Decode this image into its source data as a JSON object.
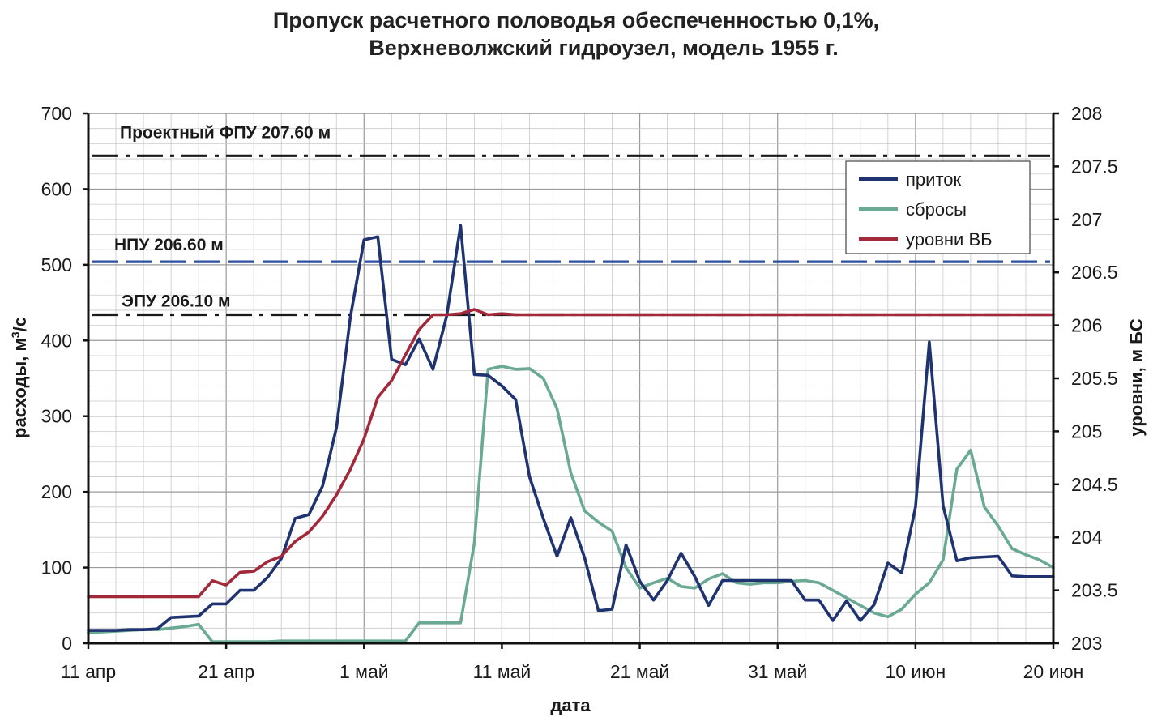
{
  "chart_data": {
    "type": "line",
    "title_line1": "Пропуск расчетного половодья обеспеченностью 0,1%,",
    "title_line2": "Верхневолжский гидроузел, модель 1955 г.",
    "xlabel": "дата",
    "ylabel_left": "расходы, м",
    "ylabel_left_sup": "3",
    "ylabel_left_tail": "/с",
    "ylabel_right": "уровни, м БС",
    "xlim": [
      0,
      70
    ],
    "ylim_left": [
      0,
      700
    ],
    "ylim_right": [
      203,
      208
    ],
    "x_ticks": [
      {
        "day": 0,
        "label": "11 апр"
      },
      {
        "day": 10,
        "label": "21 апр"
      },
      {
        "day": 20,
        "label": "1 май"
      },
      {
        "day": 30,
        "label": "11 май"
      },
      {
        "day": 40,
        "label": "21 май"
      },
      {
        "day": 50,
        "label": "31 май"
      },
      {
        "day": 60,
        "label": "10 июн"
      },
      {
        "day": 70,
        "label": "20 июн"
      }
    ],
    "y_left_ticks": [
      0,
      100,
      200,
      300,
      400,
      500,
      600,
      700
    ],
    "y_right_ticks": [
      "203",
      "203.5",
      "204",
      "204.5",
      "205",
      "205.5",
      "206",
      "206.5",
      "207",
      "207.5",
      "208"
    ],
    "reference_lines": [
      {
        "label": "Проектный ФПУ 207.60 м",
        "value": 207.6,
        "axis": "right",
        "style": "dashdot",
        "color": "#1a1a1a"
      },
      {
        "label": "НПУ 206.60 м",
        "value": 206.6,
        "axis": "right",
        "style": "dash",
        "color": "#2b50a0"
      },
      {
        "label": "ЭПУ 206.10 м",
        "value": 206.1,
        "axis": "right",
        "style": "dashdot",
        "color": "#1a1a1a"
      }
    ],
    "series": [
      {
        "name": "приток",
        "axis": "left",
        "color": "#1f3370",
        "x": [
          0,
          1,
          2,
          3,
          4,
          5,
          6,
          7,
          8,
          9,
          10,
          11,
          12,
          13,
          14,
          15,
          16,
          17,
          18,
          19,
          20,
          21,
          22,
          23,
          24,
          25,
          26,
          27,
          28,
          29,
          30,
          31,
          32,
          33,
          34,
          35,
          36,
          37,
          38,
          39,
          40,
          41,
          42,
          43,
          44,
          45,
          46,
          47,
          48,
          49,
          50,
          51,
          52,
          53,
          54,
          55,
          56,
          57,
          58,
          59,
          60,
          61,
          62,
          63,
          64,
          65,
          66,
          67,
          68,
          69,
          70
        ],
        "values": [
          17,
          17,
          17,
          18,
          18,
          19,
          34,
          35,
          36,
          52,
          52,
          70,
          70,
          87,
          112,
          165,
          170,
          208,
          285,
          430,
          533,
          537,
          375,
          368,
          402,
          362,
          433,
          552,
          355,
          354,
          340,
          322,
          220,
          165,
          115,
          166,
          113,
          43,
          45,
          130,
          82,
          57,
          83,
          119,
          88,
          50,
          83,
          83,
          83,
          83,
          83,
          83,
          57,
          57,
          30,
          56,
          30,
          51,
          106,
          93,
          180,
          398,
          182,
          109,
          113,
          114,
          115,
          89,
          88,
          88,
          88
        ]
      },
      {
        "name": "сбросы",
        "axis": "left",
        "color": "#6aaa94",
        "x": [
          0,
          1,
          2,
          3,
          4,
          5,
          6,
          7,
          8,
          9,
          10,
          11,
          12,
          13,
          14,
          15,
          16,
          17,
          18,
          19,
          20,
          21,
          22,
          23,
          24,
          25,
          26,
          27,
          28,
          29,
          30,
          31,
          32,
          33,
          34,
          35,
          36,
          37,
          38,
          39,
          40,
          41,
          42,
          43,
          44,
          45,
          46,
          47,
          48,
          49,
          50,
          51,
          52,
          53,
          54,
          55,
          56,
          57,
          58,
          59,
          60,
          61,
          62,
          63,
          64,
          65,
          66,
          67,
          68,
          69,
          70
        ],
        "values": [
          14,
          15,
          16,
          17,
          18,
          18,
          20,
          22,
          25,
          2,
          2,
          2,
          2,
          2,
          3,
          3,
          3,
          3,
          3,
          3,
          3,
          3,
          3,
          3,
          27,
          27,
          27,
          27,
          132,
          362,
          366,
          362,
          363,
          350,
          310,
          225,
          175,
          160,
          148,
          100,
          73,
          80,
          86,
          75,
          73,
          85,
          92,
          80,
          78,
          80,
          80,
          82,
          83,
          80,
          70,
          60,
          50,
          40,
          35,
          45,
          65,
          80,
          110,
          230,
          255,
          180,
          155,
          125,
          117,
          110,
          100
        ]
      },
      {
        "name": "уровни ВБ",
        "axis": "right",
        "color": "#a3283a",
        "x": [
          0,
          1,
          2,
          3,
          4,
          5,
          6,
          7,
          8,
          9,
          10,
          11,
          12,
          13,
          14,
          15,
          16,
          17,
          18,
          19,
          20,
          21,
          22,
          23,
          24,
          25,
          26,
          27,
          28,
          29,
          30,
          31,
          32,
          33,
          34,
          35,
          36,
          37,
          38,
          39,
          40,
          41,
          42,
          43,
          44,
          45,
          46,
          47,
          48,
          49,
          50,
          51,
          52,
          53,
          54,
          55,
          56,
          57,
          58,
          59,
          60,
          61,
          62,
          63,
          64,
          65,
          66,
          67,
          68,
          69,
          70
        ],
        "values": [
          203.44,
          203.44,
          203.44,
          203.44,
          203.44,
          203.44,
          203.44,
          203.44,
          203.44,
          203.59,
          203.55,
          203.67,
          203.68,
          203.77,
          203.82,
          203.96,
          204.05,
          204.2,
          204.4,
          204.64,
          204.93,
          205.32,
          205.48,
          205.72,
          205.96,
          206.1,
          206.1,
          206.11,
          206.15,
          206.1,
          206.11,
          206.1,
          206.1,
          206.1,
          206.1,
          206.1,
          206.1,
          206.1,
          206.1,
          206.1,
          206.1,
          206.1,
          206.1,
          206.1,
          206.1,
          206.1,
          206.1,
          206.1,
          206.1,
          206.1,
          206.1,
          206.1,
          206.1,
          206.1,
          206.1,
          206.1,
          206.1,
          206.1,
          206.1,
          206.1,
          206.1,
          206.1,
          206.1,
          206.1,
          206.1,
          206.1,
          206.1,
          206.1,
          206.1,
          206.1,
          206.1
        ]
      }
    ],
    "legend": {
      "placement": "top-right"
    }
  }
}
